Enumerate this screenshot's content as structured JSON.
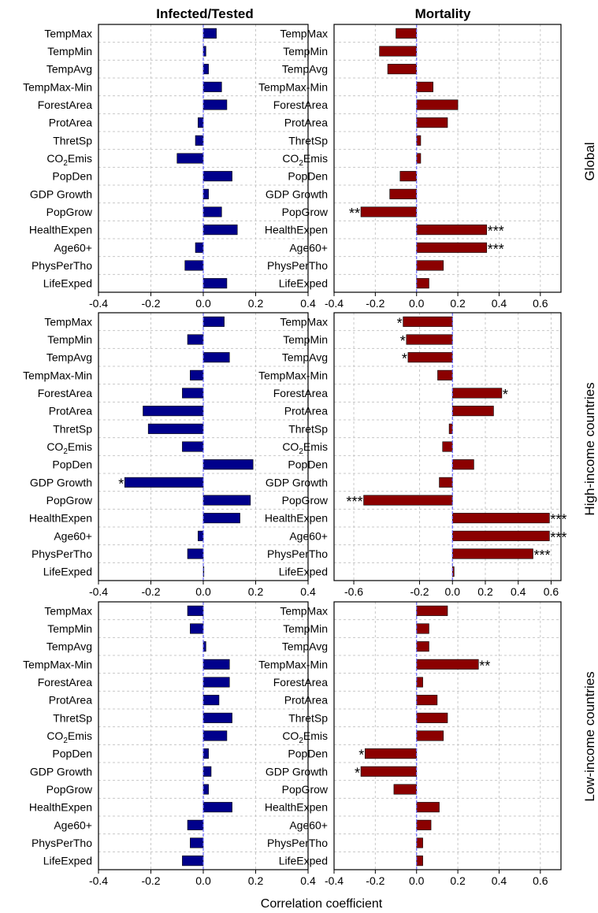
{
  "figure": {
    "col_titles": [
      "Infected/Tested",
      "Mortality"
    ],
    "row_titles": [
      "Global",
      "High-income countries",
      "Low-income countries"
    ],
    "xlabel": "Correlation coefficient"
  },
  "colors": {
    "infected_bar": "#00008b",
    "mortality_bar": "#8b0000",
    "zero_line": "#6a6aff",
    "grid": "#c8c8c8"
  },
  "chart_data": [
    {
      "type": "bar",
      "orientation": "horizontal",
      "panel": "Global - Infected/Tested",
      "categories": [
        "TempMax",
        "TempMin",
        "TempAvg",
        "TempMax-Min",
        "ForestArea",
        "ProtArea",
        "ThretSp",
        "CO2Emis",
        "PopDen",
        "GDP Growth",
        "PopGrow",
        "HealthExpen",
        "Age60+",
        "PhysPerTho",
        "LifeExped"
      ],
      "values": [
        0.05,
        0.01,
        0.02,
        0.07,
        0.09,
        -0.02,
        -0.03,
        -0.1,
        0.11,
        0.02,
        0.07,
        0.13,
        -0.03,
        -0.07,
        0.09
      ],
      "significance": [
        "",
        "",
        "",
        "",
        "",
        "",
        "",
        "",
        "",
        "",
        "",
        "",
        "",
        "",
        ""
      ],
      "xlim": [
        -0.4,
        0.4
      ],
      "xticks": [
        "-0.4",
        "-0.2",
        "0.0",
        "0.2",
        "0.4"
      ],
      "grid": true
    },
    {
      "type": "bar",
      "orientation": "horizontal",
      "panel": "Global - Mortality",
      "categories": [
        "TempMax",
        "TempMin",
        "TempAvg",
        "TempMax-Min",
        "ForestArea",
        "ProtArea",
        "ThretSp",
        "CO2Emis",
        "PopDen",
        "GDP Growth",
        "PopGrow",
        "HealthExpen",
        "Age60+",
        "PhysPerTho",
        "LifeExped"
      ],
      "values": [
        -0.1,
        -0.18,
        -0.14,
        0.08,
        0.2,
        0.15,
        0.02,
        0.02,
        -0.08,
        -0.13,
        -0.27,
        0.34,
        0.34,
        0.13,
        0.06
      ],
      "significance": [
        "",
        "",
        "",
        "",
        "",
        "",
        "",
        "",
        "",
        "",
        "**",
        "***",
        "***",
        "",
        ""
      ],
      "xlim": [
        -0.4,
        0.7
      ],
      "xticks": [
        "-0.4",
        "-0.2",
        "0.0",
        "0.2",
        "0.4",
        "0.6"
      ],
      "grid": true
    },
    {
      "type": "bar",
      "orientation": "horizontal",
      "panel": "High-income countries - Infected/Tested",
      "categories": [
        "TempMax",
        "TempMin",
        "TempAvg",
        "TempMax-Min",
        "ForestArea",
        "ProtArea",
        "ThretSp",
        "CO2Emis",
        "PopDen",
        "GDP Growth",
        "PopGrow",
        "HealthExpen",
        "Age60+",
        "PhysPerTho",
        "LifeExped"
      ],
      "values": [
        0.08,
        -0.06,
        0.1,
        -0.05,
        -0.08,
        -0.23,
        -0.21,
        -0.08,
        0.19,
        -0.3,
        0.18,
        0.14,
        -0.02,
        -0.06,
        0.0
      ],
      "significance": [
        "",
        "",
        "",
        "",
        "",
        "",
        "",
        "",
        "",
        "*",
        "",
        "",
        "",
        "",
        ""
      ],
      "xlim": [
        -0.4,
        0.4
      ],
      "xticks": [
        "-0.4",
        "-0.2",
        "0.0",
        "0.2",
        "0.4"
      ],
      "grid": true
    },
    {
      "type": "bar",
      "orientation": "horizontal",
      "panel": "High-income countries - Mortality",
      "categories": [
        "TempMax",
        "TempMin",
        "TempAvg",
        "TempMax-Min",
        "ForestArea",
        "ProtArea",
        "ThretSp",
        "CO2Emis",
        "PopDen",
        "GDP Growth",
        "PopGrow",
        "HealthExpen",
        "Age60+",
        "PhysPerTho",
        "LifeExped"
      ],
      "values": [
        -0.3,
        -0.28,
        -0.27,
        -0.09,
        0.3,
        0.25,
        -0.02,
        -0.06,
        0.13,
        -0.08,
        -0.54,
        0.59,
        0.59,
        0.49,
        0.01
      ],
      "significance": [
        "*",
        "*",
        "*",
        "",
        "*",
        "",
        "",
        "",
        "",
        "",
        "***",
        "***",
        "***",
        "***",
        ""
      ],
      "xlim": [
        -0.72,
        0.66
      ],
      "xticks": [
        "-0.6",
        "-0.2",
        "0.0",
        "0.2",
        "0.4",
        "0.6"
      ],
      "grid": true
    },
    {
      "type": "bar",
      "orientation": "horizontal",
      "panel": "Low-income countries - Infected/Tested",
      "categories": [
        "TempMax",
        "TempMin",
        "TempAvg",
        "TempMax-Min",
        "ForestArea",
        "ProtArea",
        "ThretSp",
        "CO2Emis",
        "PopDen",
        "GDP Growth",
        "PopGrow",
        "HealthExpen",
        "Age60+",
        "PhysPerTho",
        "LifeExped"
      ],
      "values": [
        -0.06,
        -0.05,
        0.01,
        0.1,
        0.1,
        0.06,
        0.11,
        0.09,
        0.02,
        0.03,
        0.02,
        0.11,
        -0.06,
        -0.05,
        -0.08
      ],
      "significance": [
        "",
        "",
        "",
        "",
        "",
        "",
        "",
        "",
        "",
        "",
        "",
        "",
        "",
        "",
        ""
      ],
      "xlim": [
        -0.4,
        0.4
      ],
      "xticks": [
        "-0.4",
        "-0.2",
        "0.0",
        "0.2",
        "0.4"
      ],
      "grid": true
    },
    {
      "type": "bar",
      "orientation": "horizontal",
      "panel": "Low-income countries - Mortality",
      "categories": [
        "TempMax",
        "TempMin",
        "TempAvg",
        "TempMax-Min",
        "ForestArea",
        "ProtArea",
        "ThretSp",
        "CO2Emis",
        "PopDen",
        "GDP Growth",
        "PopGrow",
        "HealthExpen",
        "Age60+",
        "PhysPerTho",
        "LifeExped"
      ],
      "values": [
        0.15,
        0.06,
        0.06,
        0.3,
        0.03,
        0.1,
        0.15,
        0.13,
        -0.25,
        -0.27,
        -0.11,
        0.11,
        0.07,
        0.03,
        0.03
      ],
      "significance": [
        "",
        "",
        "",
        "**",
        "",
        "",
        "",
        "",
        "*",
        "*",
        "",
        "",
        "",
        "",
        ""
      ],
      "xlim": [
        -0.4,
        0.7
      ],
      "xticks": [
        "-0.4",
        "-0.2",
        "0.0",
        "0.2",
        "0.4",
        "0.6"
      ],
      "grid": true
    }
  ]
}
